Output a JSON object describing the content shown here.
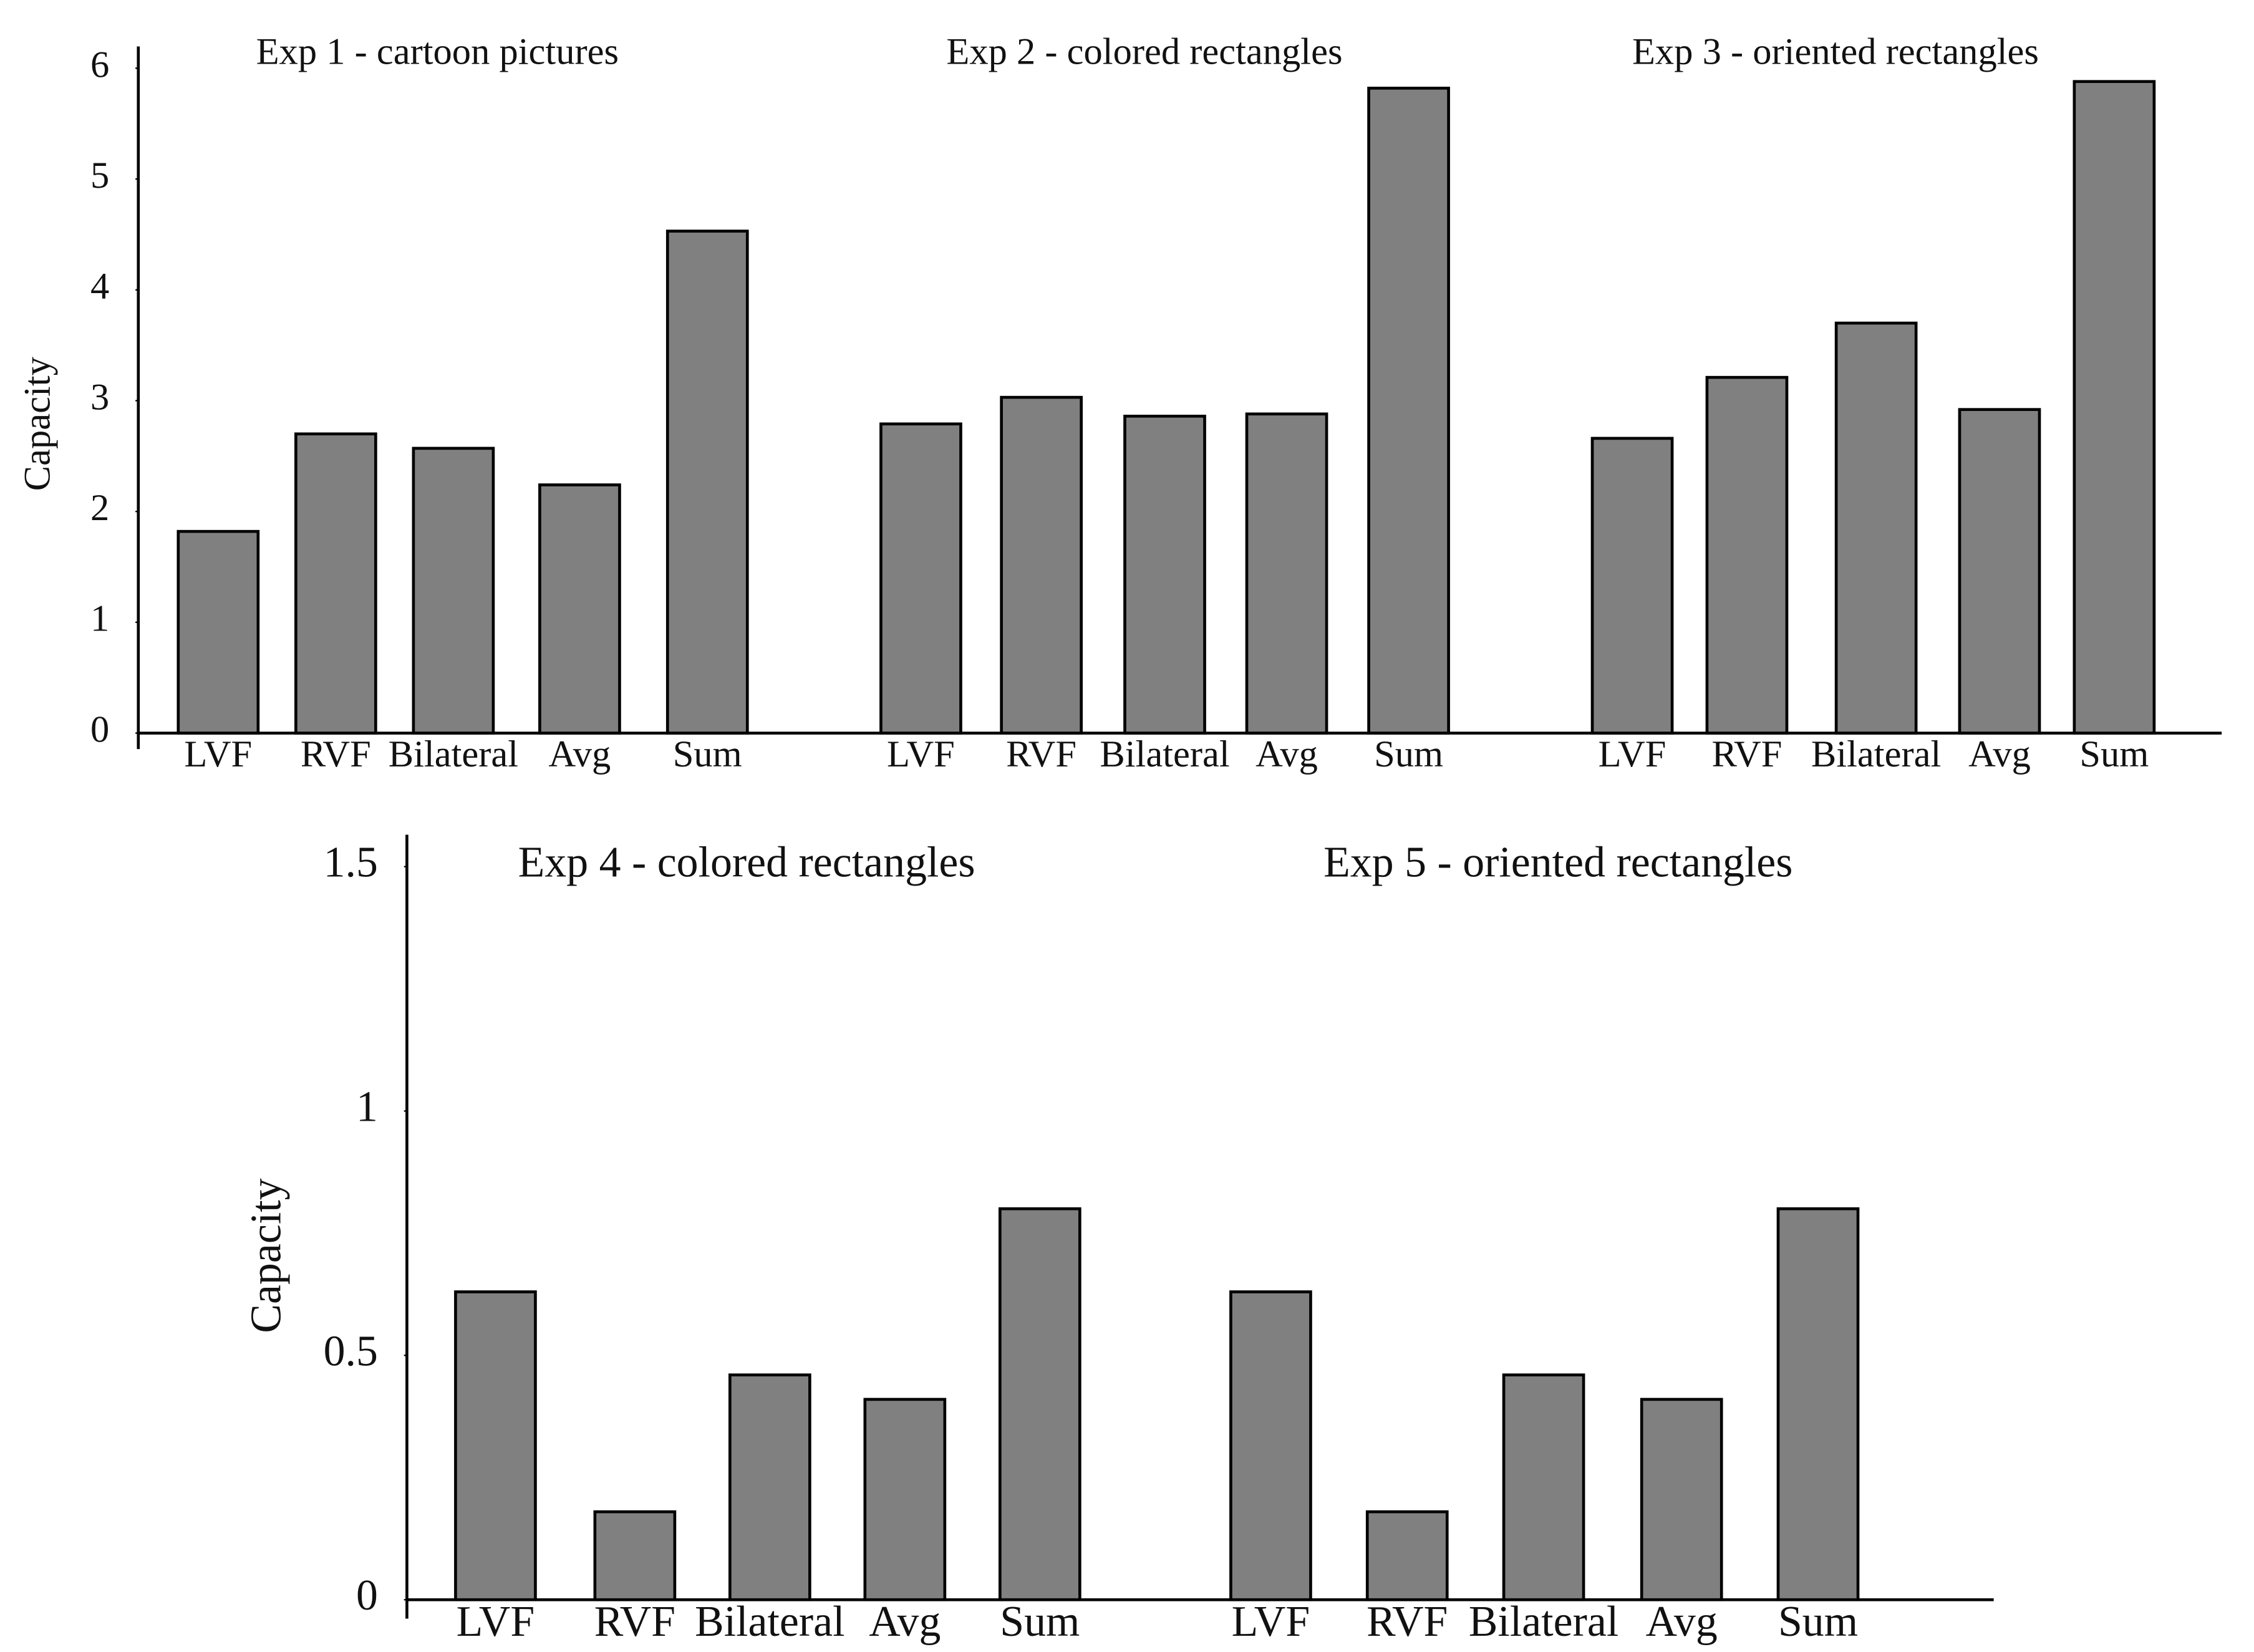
{
  "chart_data": [
    {
      "type": "bar",
      "y_label": "Capacity",
      "color": "#808080",
      "categories": [
        "LVF",
        "RVF",
        "Bilateral",
        "Avg",
        "Sum"
      ],
      "ylim": [
        0,
        6
      ],
      "yticks": [
        0,
        1,
        2,
        3,
        4,
        5,
        6
      ],
      "groups": [
        {
          "title": "Exp 1 - cartoon pictures",
          "values": [
            1.82,
            2.7,
            2.57,
            2.24,
            4.53
          ]
        },
        {
          "title": "Exp 2 - colored rectangles",
          "values": [
            2.79,
            3.03,
            2.86,
            2.88,
            5.82
          ]
        },
        {
          "title": "Exp 3 - oriented rectangles",
          "values": [
            2.66,
            3.21,
            3.7,
            2.92,
            5.88
          ]
        }
      ]
    },
    {
      "type": "bar",
      "y_label": "Capacity",
      "color": "#808080",
      "categories": [
        "LVF",
        "RVF",
        "Bilateral",
        "Avg",
        "Sum"
      ],
      "ylim": [
        0,
        1.5
      ],
      "yticks": [
        0,
        0.5,
        1,
        1.5
      ],
      "groups": [
        {
          "title": "Exp 4 - colored rectangles",
          "values": [
            0.63,
            0.18,
            0.46,
            0.41,
            0.8
          ]
        },
        {
          "title": "Exp 5 - oriented rectangles",
          "values": [
            0.63,
            0.18,
            0.46,
            0.41,
            0.8
          ]
        }
      ]
    }
  ]
}
